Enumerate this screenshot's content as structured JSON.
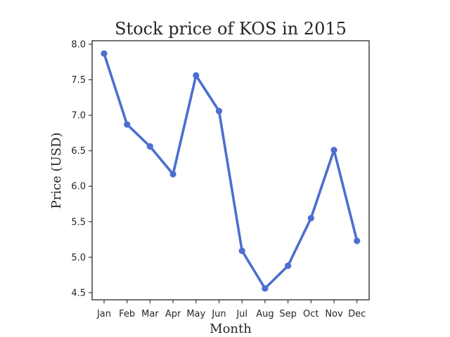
{
  "chart_data": {
    "type": "line",
    "title": "Stock price of KOS in 2015",
    "xlabel": "Month",
    "ylabel": "Price (USD)",
    "categories": [
      "Jan",
      "Feb",
      "Mar",
      "Apr",
      "May",
      "Jun",
      "Jul",
      "Aug",
      "Sep",
      "Oct",
      "Nov",
      "Dec"
    ],
    "series": [
      {
        "values": [
          7.87,
          6.87,
          6.56,
          6.17,
          7.56,
          7.06,
          5.09,
          4.56,
          4.88,
          5.55,
          6.51,
          5.23
        ],
        "color": "#4c6fcf"
      }
    ],
    "ylim": [
      4.4,
      8.05
    ],
    "yticks": [
      "4.5",
      "5.0",
      "5.5",
      "6.0",
      "6.5",
      "7.0",
      "7.5",
      "8.0"
    ],
    "grid": false,
    "legend": "none"
  }
}
